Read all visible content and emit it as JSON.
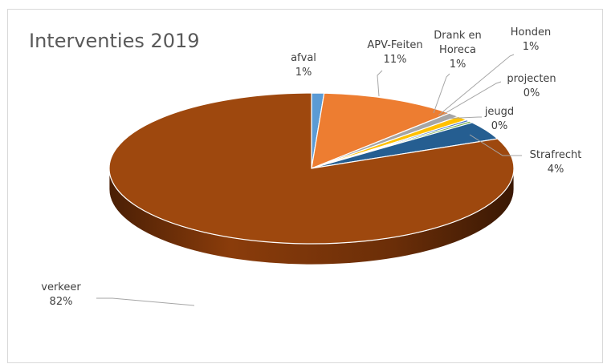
{
  "chart_data": {
    "type": "pie",
    "style": "3d",
    "title": "Interventies 2019",
    "slices": [
      {
        "label": "afval",
        "value": 1,
        "value_label": "1%",
        "color": "#5b9bd5"
      },
      {
        "label": "APV-Feiten",
        "value": 11,
        "value_label": "11%",
        "color": "#ed7d31"
      },
      {
        "label": "Drank en Horeca",
        "value": 1,
        "value_label": "1%",
        "color": "#a5a5a5"
      },
      {
        "label": "Honden",
        "value": 1,
        "value_label": "1%",
        "color": "#ffc000"
      },
      {
        "label": "projecten",
        "value": 0,
        "value_label": "0%",
        "color": "#4472c4"
      },
      {
        "label": "jeugd",
        "value": 0,
        "value_label": "0%",
        "color": "#70ad47"
      },
      {
        "label": "Strafrecht",
        "value": 4,
        "value_label": "4%",
        "color": "#255e91"
      },
      {
        "label": "verkeer",
        "value": 82,
        "value_label": "82%",
        "color": "#9e480e"
      }
    ],
    "legend": "none"
  }
}
